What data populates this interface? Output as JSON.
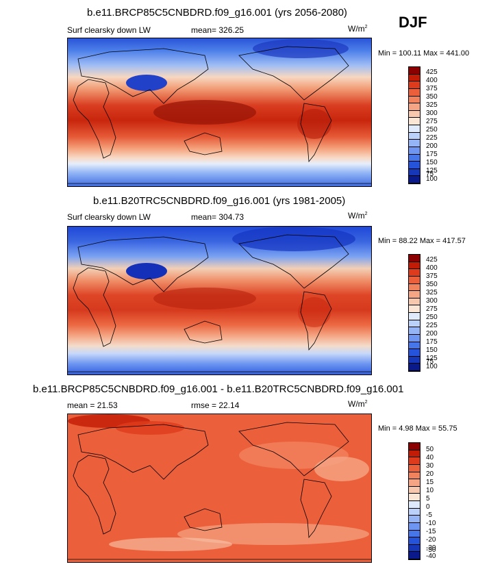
{
  "season": "DJF",
  "panels": [
    {
      "title": "b.e11.BRCP85C5CNBDRD.f09_g16.001 (yrs 2056-2080)",
      "left_label": "Surf clearsky down LW",
      "center_label": "mean= 326.25",
      "unit": "W/m",
      "unit_sup": "2",
      "minmax": "Min = 100.11 Max = 441.00",
      "colorbar_labels": [
        "425",
        "400",
        "375",
        "350",
        "325",
        "300",
        "275",
        "250",
        "225",
        "200",
        "175",
        "150",
        "125",
        "100",
        "75"
      ]
    },
    {
      "title": "b.e11.B20TRC5CNBDRD.f09_g16.001 (yrs 1981-2005)",
      "left_label": "Surf clearsky down LW",
      "center_label": "mean= 304.73",
      "unit": "W/m",
      "unit_sup": "2",
      "minmax": "Min =  88.22 Max = 417.57",
      "colorbar_labels": [
        "425",
        "400",
        "375",
        "350",
        "325",
        "300",
        "275",
        "250",
        "225",
        "200",
        "175",
        "150",
        "125",
        "100",
        "75"
      ]
    },
    {
      "title": "b.e11.BRCP85C5CNBDRD.f09_g16.001 - b.e11.B20TRC5CNBDRD.f09_g16.001",
      "left_label": "mean = 21.53",
      "center_label": "rmse =  22.14",
      "unit": "W/m",
      "unit_sup": "2",
      "minmax": "Min =   4.98 Max = 55.75",
      "colorbar_labels": [
        "50",
        "40",
        "30",
        "20",
        "15",
        "10",
        "5",
        "0",
        "-5",
        "-10",
        "-15",
        "-20",
        "-30",
        "-40",
        "-50"
      ]
    }
  ],
  "colors": {
    "abs_scale": [
      "#fdfaf5",
      "#f1e8d8",
      "#fae0cc",
      "#f6c3a3",
      "#f5a37d",
      "#f07d55",
      "#e65a37",
      "#d93b1f",
      "#b8210e",
      "#8c0e05",
      "#0a0f8c",
      "#1e2ec4",
      "#1f48e0",
      "#2f62ea",
      "#4a7ef0",
      "#6c9af3",
      "#93b6f6",
      "#bcd2f9",
      "#e4eefd"
    ],
    "abs_bar": [
      "#8b0000",
      "#c21c06",
      "#de3b1c",
      "#ec5f3b",
      "#f1825e",
      "#f5a584",
      "#f8c8ae",
      "#fbe6d6",
      "#dfeafc",
      "#bcd1fa",
      "#94b4f6",
      "#6d95f1",
      "#4775ea",
      "#2554db",
      "#1637b8",
      "#0a1a8a"
    ],
    "diff_bar": [
      "#8b0000",
      "#c21c06",
      "#de3b1c",
      "#ec5f3b",
      "#f1825e",
      "#f5a584",
      "#f8c8ae",
      "#fbe6d6",
      "#dfeafc",
      "#bcd1fa",
      "#94b4f6",
      "#6d95f1",
      "#4775ea",
      "#2554db",
      "#1637b8",
      "#0a1a8a"
    ]
  }
}
